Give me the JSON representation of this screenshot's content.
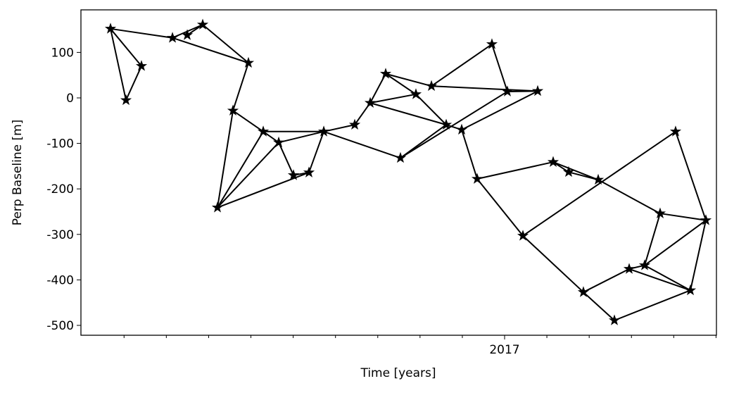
{
  "chart_data": {
    "type": "network",
    "xlabel": "Time [years]",
    "ylabel": "Perp Baseline [m]",
    "x": [
      2016.2233,
      2016.2538,
      2016.2843,
      2016.3454,
      2016.3745,
      2016.405,
      2016.4951,
      2016.4646,
      2016.4341,
      2016.5243,
      2016.5548,
      2016.5839,
      2016.6144,
      2016.6436,
      2016.7046,
      2016.7351,
      2016.7656,
      2016.7947,
      2016.8252,
      2016.8558,
      2016.8849,
      2016.9154,
      2016.9459,
      2016.975,
      2017.0055,
      2017.0652,
      2017.0361,
      2017.0957,
      2017.1262,
      2017.1845,
      2017.1553,
      2017.2164,
      2017.2455,
      2017.276,
      2017.3065,
      2017.337,
      2017.3662,
      2017.3967
    ],
    "values": [
      152,
      -5,
      70,
      132,
      138,
      161,
      77,
      -28,
      -241,
      -74,
      -98,
      -170,
      -164,
      -74,
      -59,
      -11,
      53,
      -132,
      8,
      26,
      -59,
      -70,
      -178,
      118,
      14,
      15,
      -303,
      -141,
      -163,
      -180,
      -427,
      -489,
      -376,
      -368,
      -254,
      -74,
      -423,
      -269
    ],
    "edges": [
      [
        0,
        1
      ],
      [
        0,
        2
      ],
      [
        1,
        2
      ],
      [
        0,
        3
      ],
      [
        3,
        5
      ],
      [
        4,
        5
      ],
      [
        3,
        6
      ],
      [
        5,
        6
      ],
      [
        6,
        7
      ],
      [
        7,
        8
      ],
      [
        7,
        9
      ],
      [
        8,
        9
      ],
      [
        8,
        10
      ],
      [
        8,
        12
      ],
      [
        9,
        10
      ],
      [
        9,
        13
      ],
      [
        10,
        11
      ],
      [
        10,
        13
      ],
      [
        11,
        12
      ],
      [
        12,
        13
      ],
      [
        13,
        14
      ],
      [
        13,
        17
      ],
      [
        14,
        15
      ],
      [
        15,
        16
      ],
      [
        15,
        18
      ],
      [
        15,
        20
      ],
      [
        16,
        18
      ],
      [
        18,
        20
      ],
      [
        16,
        19
      ],
      [
        19,
        23
      ],
      [
        19,
        25
      ],
      [
        17,
        20
      ],
      [
        17,
        24
      ],
      [
        20,
        21
      ],
      [
        21,
        25
      ],
      [
        23,
        24
      ],
      [
        24,
        25
      ],
      [
        21,
        22
      ],
      [
        22,
        27
      ],
      [
        22,
        26
      ],
      [
        26,
        35
      ],
      [
        26,
        30
      ],
      [
        27,
        28
      ],
      [
        27,
        29
      ],
      [
        28,
        29
      ],
      [
        29,
        34
      ],
      [
        34,
        37
      ],
      [
        35,
        37
      ],
      [
        34,
        33
      ],
      [
        33,
        37
      ],
      [
        33,
        36
      ],
      [
        32,
        33
      ],
      [
        30,
        32
      ],
      [
        30,
        31
      ],
      [
        31,
        36
      ],
      [
        36,
        37
      ],
      [
        32,
        36
      ]
    ],
    "color": "#000000",
    "xlim": [
      2016.165,
      2017.4175
    ],
    "ylim": [
      -521.7,
      193.5
    ],
    "xticks": [
      2017
    ],
    "xminorticks": [
      2016.25,
      2016.3333,
      2016.4167,
      2016.5,
      2016.5833,
      2016.6667,
      2016.75,
      2016.8333,
      2016.9167,
      2017.0833,
      2017.1667,
      2017.25,
      2017.3333,
      2017.4167
    ],
    "yticks": [
      -500,
      -400,
      -300,
      -200,
      -100,
      0,
      100
    ]
  }
}
